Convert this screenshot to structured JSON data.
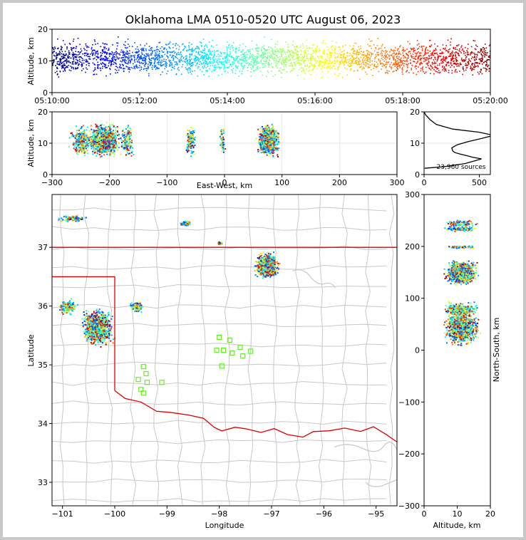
{
  "chart_data": {
    "type": "scatter",
    "title": "Oklahoma LMA 0510-0520 UTC August 06, 2023",
    "panels": {
      "time_altitude": {
        "ylabel": "Altitude, km",
        "ylim": [
          0,
          20
        ],
        "yticks": [
          "0",
          "10",
          "20"
        ],
        "xlim": [
          "05:10:00",
          "05:20:00"
        ],
        "xticks": [
          "05:10:00",
          "05:12:00",
          "05:14:00",
          "05:16:00",
          "05:18:00",
          "05:20:00"
        ]
      },
      "eastwest_altitude": {
        "xlabel": "East-West, km",
        "ylabel": "Altitude, km",
        "xlim": [
          -300,
          300
        ],
        "ylim": [
          0,
          20
        ],
        "xticks": [
          "−300",
          "−200",
          "−100",
          "0",
          "100",
          "200",
          "300"
        ],
        "yticks": [
          "0",
          "10",
          "20"
        ]
      },
      "histogram": {
        "xlim": [
          0,
          600
        ],
        "ylim": [
          0,
          20
        ],
        "xticks": [
          "0",
          "500"
        ],
        "yticks": [
          "0",
          "10",
          "20"
        ],
        "annotation": "23,960 sources",
        "profile": [
          {
            "alt": 2,
            "count": 5
          },
          {
            "alt": 2.5,
            "count": 180
          },
          {
            "alt": 3.5,
            "count": 370
          },
          {
            "alt": 4.5,
            "count": 470
          },
          {
            "alt": 5,
            "count": 520
          },
          {
            "alt": 5.5,
            "count": 440
          },
          {
            "alt": 6,
            "count": 390
          },
          {
            "alt": 6.5,
            "count": 330
          },
          {
            "alt": 7,
            "count": 280
          },
          {
            "alt": 7.5,
            "count": 260
          },
          {
            "alt": 8.5,
            "count": 250
          },
          {
            "alt": 9.5,
            "count": 300
          },
          {
            "alt": 10.5,
            "count": 400
          },
          {
            "alt": 11.5,
            "count": 520
          },
          {
            "alt": 12.5,
            "count": 630
          },
          {
            "alt": 13.5,
            "count": 500
          },
          {
            "alt": 14.5,
            "count": 260
          },
          {
            "alt": 16,
            "count": 110
          },
          {
            "alt": 17.5,
            "count": 55
          },
          {
            "alt": 19,
            "count": 15
          },
          {
            "alt": 20,
            "count": 0
          }
        ]
      },
      "map": {
        "xlabel": "Longitude",
        "ylabel": "Latitude",
        "xlim": [
          -101.2,
          -94.6
        ],
        "ylim": [
          32.6,
          37.9
        ],
        "xticks": [
          "−101",
          "−100",
          "−99",
          "−98",
          "−97",
          "−96",
          "−95"
        ],
        "yticks": [
          "33",
          "34",
          "35",
          "36",
          "37"
        ]
      },
      "altitude_northsouth": {
        "xlabel": "Altitude, km",
        "ylabel": "North-South, km",
        "xlim": [
          0,
          20
        ],
        "ylim": [
          -300,
          300
        ],
        "xticks": [
          "0",
          "10",
          "20"
        ],
        "yticks": [
          "−300",
          "−200",
          "−100",
          "0",
          "100",
          "200",
          "300"
        ]
      }
    },
    "clusters": [
      {
        "lon": -100.35,
        "lat": 35.65,
        "ew": -210,
        "ns": 45,
        "spread_lon": 0.35,
        "spread_lat": 0.35,
        "weight": 0.3
      },
      {
        "lon": -97.1,
        "lat": 36.7,
        "ew": 75,
        "ns": 150,
        "spread_lon": 0.25,
        "spread_lat": 0.25,
        "weight": 0.35
      },
      {
        "lon": -98.65,
        "lat": 37.42,
        "ew": -60,
        "ns": 235,
        "spread_lon": 0.12,
        "spread_lat": 0.05,
        "weight": 0.05
      },
      {
        "lon": -100.8,
        "lat": 37.5,
        "ew": -250,
        "ns": 245,
        "spread_lon": 0.3,
        "spread_lat": 0.07,
        "weight": 0.04
      },
      {
        "lon": -100.9,
        "lat": 36.0,
        "ew": -250,
        "ns": 80,
        "spread_lon": 0.2,
        "spread_lat": 0.15,
        "weight": 0.08
      },
      {
        "lon": -99.6,
        "lat": 36.0,
        "ew": -170,
        "ns": 80,
        "spread_lon": 0.15,
        "spread_lat": 0.1,
        "weight": 0.06
      },
      {
        "lon": -98.0,
        "lat": 37.08,
        "ew": -5,
        "ns": 200,
        "spread_lon": 0.06,
        "spread_lat": 0.03,
        "weight": 0.02
      }
    ],
    "stations": [
      {
        "lon": -99.55,
        "lat": 34.75
      },
      {
        "lon": -99.45,
        "lat": 34.97
      },
      {
        "lon": -99.4,
        "lat": 34.85
      },
      {
        "lon": -99.38,
        "lat": 34.7
      },
      {
        "lon": -99.5,
        "lat": 34.58
      },
      {
        "lon": -99.45,
        "lat": 34.52
      },
      {
        "lon": -99.1,
        "lat": 34.7
      },
      {
        "lon": -98.0,
        "lat": 35.47
      },
      {
        "lon": -98.05,
        "lat": 35.25
      },
      {
        "lon": -97.92,
        "lat": 35.25
      },
      {
        "lon": -97.95,
        "lat": 34.98
      },
      {
        "lon": -97.8,
        "lat": 35.42
      },
      {
        "lon": -97.75,
        "lat": 35.2
      },
      {
        "lon": -97.6,
        "lat": 35.3
      },
      {
        "lon": -97.55,
        "lat": 35.15
      },
      {
        "lon": -97.4,
        "lat": 35.23
      }
    ],
    "colors": {
      "state_border": "#dd0000",
      "county_line": "#c8c8c8",
      "station": "#66ee22",
      "colormap": "jet"
    }
  }
}
